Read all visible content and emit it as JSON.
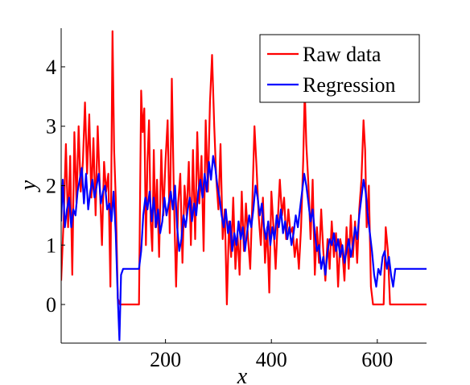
{
  "chart_data": {
    "type": "line",
    "title": "",
    "xlabel": "x",
    "ylabel": "y",
    "xlim": [
      3,
      693
    ],
    "ylim": [
      -0.65,
      4.65
    ],
    "x_ticks": [
      200,
      400,
      600
    ],
    "y_ticks": [
      0,
      1,
      2,
      3,
      4
    ],
    "x_tick_labels": [
      "200",
      "400",
      "600"
    ],
    "y_tick_labels": [
      "0",
      "1",
      "2",
      "3",
      "4"
    ],
    "grid": false,
    "legend_position": "top-right",
    "series": [
      {
        "name": "Raw data",
        "color": "#ff0000",
        "points": [
          [
            3,
            0.4
          ],
          [
            8,
            1.5
          ],
          [
            12,
            2.7
          ],
          [
            16,
            1.3
          ],
          [
            20,
            2.5
          ],
          [
            24,
            0.5
          ],
          [
            28,
            2.9
          ],
          [
            32,
            1.7
          ],
          [
            36,
            3.0
          ],
          [
            40,
            1.9
          ],
          [
            44,
            2.4
          ],
          [
            48,
            3.4
          ],
          [
            52,
            2.2
          ],
          [
            56,
            3.2
          ],
          [
            60,
            1.8
          ],
          [
            64,
            2.8
          ],
          [
            68,
            1.5
          ],
          [
            72,
            3.0
          ],
          [
            76,
            2.0
          ],
          [
            80,
            1.0
          ],
          [
            84,
            2.4
          ],
          [
            88,
            1.9
          ],
          [
            92,
            2.2
          ],
          [
            96,
            0.3
          ],
          [
            100,
            4.6
          ],
          [
            103,
            2.6
          ],
          [
            106,
            1.8
          ],
          [
            110,
            0.1
          ],
          [
            114,
            0
          ],
          [
            150,
            0
          ],
          [
            154,
            3.6
          ],
          [
            157,
            2.9
          ],
          [
            160,
            3.3
          ],
          [
            163,
            1.0
          ],
          [
            166,
            2.4
          ],
          [
            169,
            3.1
          ],
          [
            172,
            1.4
          ],
          [
            175,
            0.9
          ],
          [
            178,
            2.6
          ],
          [
            181,
            1.3
          ],
          [
            184,
            2.1
          ],
          [
            188,
            0.8
          ],
          [
            192,
            2.6
          ],
          [
            196,
            1.5
          ],
          [
            200,
            2.4
          ],
          [
            204,
            3.1
          ],
          [
            208,
            1.2
          ],
          [
            212,
            3.8
          ],
          [
            216,
            1.8
          ],
          [
            220,
            0.3
          ],
          [
            224,
            1.7
          ],
          [
            228,
            2.2
          ],
          [
            232,
            0.7
          ],
          [
            236,
            2.0
          ],
          [
            240,
            1.5
          ],
          [
            244,
            2.4
          ],
          [
            248,
            1.0
          ],
          [
            252,
            2.6
          ],
          [
            256,
            1.1
          ],
          [
            260,
            2.9
          ],
          [
            264,
            1.7
          ],
          [
            268,
            2.5
          ],
          [
            272,
            0.9
          ],
          [
            276,
            3.1
          ],
          [
            280,
            1.9
          ],
          [
            284,
            3.4
          ],
          [
            288,
            4.2
          ],
          [
            292,
            3.0
          ],
          [
            296,
            2.1
          ],
          [
            300,
            1.6
          ],
          [
            304,
            2.7
          ],
          [
            308,
            1.1
          ],
          [
            312,
            1.6
          ],
          [
            316,
            0
          ],
          [
            320,
            1.4
          ],
          [
            324,
            0.8
          ],
          [
            328,
            1.8
          ],
          [
            332,
            0.6
          ],
          [
            336,
            1.2
          ],
          [
            340,
            0.5
          ],
          [
            344,
            1.9
          ],
          [
            348,
            0.9
          ],
          [
            352,
            1.7
          ],
          [
            356,
            1.1
          ],
          [
            360,
            0.6
          ],
          [
            364,
            1.7
          ],
          [
            368,
            3.0
          ],
          [
            372,
            2.3
          ],
          [
            376,
            1.5
          ],
          [
            380,
            1.0
          ],
          [
            384,
            1.8
          ],
          [
            388,
            0.7
          ],
          [
            392,
            1.3
          ],
          [
            396,
            0.2
          ],
          [
            400,
            1.9
          ],
          [
            404,
            1.3
          ],
          [
            408,
            0.6
          ],
          [
            412,
            1.4
          ],
          [
            416,
            2.1
          ],
          [
            420,
            1.5
          ],
          [
            424,
            1.8
          ],
          [
            428,
            1.1
          ],
          [
            432,
            1.6
          ],
          [
            436,
            1.2
          ],
          [
            440,
            1.3
          ],
          [
            444,
            0.8
          ],
          [
            448,
            1.1
          ],
          [
            452,
            0.6
          ],
          [
            456,
            1.3
          ],
          [
            460,
            2.4
          ],
          [
            463,
            3.6
          ],
          [
            466,
            2.7
          ],
          [
            470,
            2.0
          ],
          [
            474,
            1.1
          ],
          [
            478,
            2.1
          ],
          [
            482,
            0.5
          ],
          [
            486,
            1.3
          ],
          [
            490,
            0.7
          ],
          [
            494,
            1.6
          ],
          [
            498,
            0.9
          ],
          [
            502,
            0.4
          ],
          [
            506,
            1.1
          ],
          [
            510,
            0.6
          ],
          [
            514,
            1.4
          ],
          [
            518,
            0.8
          ],
          [
            522,
            1.2
          ],
          [
            526,
            0.3
          ],
          [
            530,
            1.1
          ],
          [
            534,
            0.9
          ],
          [
            538,
            0.4
          ],
          [
            542,
            1.3
          ],
          [
            546,
            0.6
          ],
          [
            550,
            1.5
          ],
          [
            554,
            0.8
          ],
          [
            558,
            1.4
          ],
          [
            562,
            0.7
          ],
          [
            566,
            1.6
          ],
          [
            570,
            2.1
          ],
          [
            574,
            3.1
          ],
          [
            577,
            2.6
          ],
          [
            580,
            1.3
          ],
          [
            584,
            2.0
          ],
          [
            588,
            0.3
          ],
          [
            592,
            0
          ],
          [
            612,
            0
          ],
          [
            616,
            1.3
          ],
          [
            620,
            0.9
          ],
          [
            624,
            0
          ],
          [
            693,
            0
          ]
        ]
      },
      {
        "name": "Regression",
        "color": "#0000ff",
        "points": [
          [
            3,
            1.4
          ],
          [
            6,
            2.1
          ],
          [
            10,
            1.3
          ],
          [
            14,
            1.6
          ],
          [
            18,
            1.8
          ],
          [
            22,
            1.3
          ],
          [
            26,
            1.6
          ],
          [
            30,
            1.5
          ],
          [
            34,
            1.9
          ],
          [
            38,
            2.1
          ],
          [
            42,
            2.3
          ],
          [
            46,
            1.7
          ],
          [
            50,
            2.2
          ],
          [
            54,
            1.6
          ],
          [
            58,
            1.9
          ],
          [
            62,
            2.1
          ],
          [
            66,
            1.8
          ],
          [
            70,
            2.0
          ],
          [
            74,
            2.2
          ],
          [
            78,
            1.7
          ],
          [
            82,
            1.9
          ],
          [
            86,
            2.0
          ],
          [
            90,
            1.6
          ],
          [
            94,
            1.7
          ],
          [
            98,
            1.4
          ],
          [
            102,
            1.9
          ],
          [
            106,
            1.2
          ],
          [
            110,
            0.1
          ],
          [
            113,
            -0.6
          ],
          [
            116,
            0.5
          ],
          [
            120,
            0.6
          ],
          [
            150,
            0.6
          ],
          [
            154,
            0.9
          ],
          [
            158,
            1.5
          ],
          [
            162,
            1.8
          ],
          [
            166,
            1.6
          ],
          [
            170,
            1.9
          ],
          [
            174,
            1.4
          ],
          [
            178,
            1.8
          ],
          [
            182,
            1.3
          ],
          [
            186,
            1.6
          ],
          [
            190,
            1.2
          ],
          [
            194,
            1.4
          ],
          [
            198,
            1.8
          ],
          [
            202,
            1.5
          ],
          [
            206,
            1.7
          ],
          [
            210,
            1.9
          ],
          [
            214,
            1.6
          ],
          [
            218,
            2.0
          ],
          [
            222,
            1.3
          ],
          [
            226,
            0.9
          ],
          [
            230,
            1.1
          ],
          [
            234,
            1.5
          ],
          [
            238,
            1.3
          ],
          [
            242,
            1.6
          ],
          [
            246,
            1.8
          ],
          [
            250,
            1.4
          ],
          [
            254,
            1.7
          ],
          [
            258,
            1.5
          ],
          [
            262,
            1.9
          ],
          [
            266,
            2.1
          ],
          [
            270,
            1.8
          ],
          [
            274,
            2.2
          ],
          [
            278,
            1.9
          ],
          [
            282,
            2.4
          ],
          [
            286,
            2.1
          ],
          [
            290,
            2.5
          ],
          [
            294,
            2.3
          ],
          [
            298,
            2.0
          ],
          [
            302,
            1.8
          ],
          [
            306,
            1.5
          ],
          [
            310,
            1.3
          ],
          [
            314,
            1.6
          ],
          [
            318,
            1.2
          ],
          [
            322,
            1.4
          ],
          [
            326,
            0.9
          ],
          [
            330,
            1.2
          ],
          [
            334,
            1.0
          ],
          [
            338,
            1.4
          ],
          [
            342,
            1.1
          ],
          [
            346,
            1.3
          ],
          [
            350,
            0.9
          ],
          [
            354,
            1.2
          ],
          [
            358,
            1.5
          ],
          [
            362,
            1.3
          ],
          [
            366,
            1.6
          ],
          [
            370,
            2.0
          ],
          [
            374,
            1.8
          ],
          [
            378,
            1.5
          ],
          [
            382,
            1.7
          ],
          [
            386,
            1.3
          ],
          [
            390,
            1.1
          ],
          [
            394,
            1.4
          ],
          [
            398,
            1.0
          ],
          [
            402,
            1.3
          ],
          [
            406,
            1.1
          ],
          [
            410,
            1.5
          ],
          [
            414,
            1.3
          ],
          [
            418,
            1.6
          ],
          [
            422,
            1.2
          ],
          [
            426,
            1.4
          ],
          [
            430,
            1.1
          ],
          [
            434,
            1.3
          ],
          [
            438,
            1.0
          ],
          [
            442,
            1.2
          ],
          [
            446,
            1.5
          ],
          [
            450,
            1.3
          ],
          [
            454,
            1.6
          ],
          [
            458,
            1.9
          ],
          [
            462,
            2.2
          ],
          [
            466,
            2.0
          ],
          [
            470,
            1.7
          ],
          [
            474,
            1.4
          ],
          [
            478,
            1.6
          ],
          [
            482,
            1.2
          ],
          [
            486,
            0.9
          ],
          [
            490,
            1.0
          ],
          [
            494,
            0.6
          ],
          [
            498,
            0.8
          ],
          [
            502,
            0.5
          ],
          [
            506,
            0.9
          ],
          [
            510,
            1.1
          ],
          [
            514,
            1.0
          ],
          [
            518,
            1.2
          ],
          [
            522,
            0.9
          ],
          [
            526,
            1.1
          ],
          [
            530,
            0.8
          ],
          [
            534,
            1.0
          ],
          [
            538,
            0.7
          ],
          [
            542,
            0.9
          ],
          [
            546,
            1.1
          ],
          [
            550,
            0.8
          ],
          [
            554,
            1.0
          ],
          [
            558,
            1.3
          ],
          [
            562,
            1.1
          ],
          [
            566,
            1.5
          ],
          [
            570,
            1.8
          ],
          [
            574,
            2.1
          ],
          [
            578,
            1.9
          ],
          [
            582,
            1.5
          ],
          [
            586,
            1.2
          ],
          [
            590,
            0.9
          ],
          [
            594,
            0.5
          ],
          [
            598,
            0.3
          ],
          [
            602,
            0.6
          ],
          [
            606,
            0.5
          ],
          [
            610,
            0.8
          ],
          [
            614,
            0.9
          ],
          [
            618,
            0.6
          ],
          [
            622,
            0.8
          ],
          [
            626,
            0.5
          ],
          [
            630,
            0.3
          ],
          [
            634,
            0.6
          ],
          [
            693,
            0.6
          ]
        ]
      }
    ]
  }
}
